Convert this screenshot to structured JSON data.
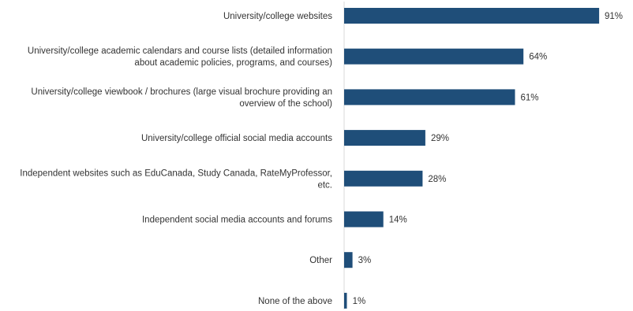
{
  "chart_data": {
    "type": "bar",
    "orientation": "horizontal",
    "categories": [
      "University/college websites",
      "University/college academic calendars and course lists (detailed information about academic policies, programs, and courses)",
      "University/college viewbook / brochures (large visual brochure providing an overview of the school)",
      "University/college official social media accounts",
      "Independent websites such as EduCanada, Study Canada, RateMyProfessor, etc.",
      "Independent social media accounts and forums",
      "Other",
      "None of the above"
    ],
    "category_lines": [
      [
        "University/college websites"
      ],
      [
        "University/college academic calendars and course lists (detailed information",
        "about academic policies, programs, and courses)"
      ],
      [
        "University/college viewbook / brochures (large visual brochure providing an",
        "overview of the school)"
      ],
      [
        "University/college official social media accounts"
      ],
      [
        "Independent websites such as EduCanada, Study Canada, RateMyProfessor,",
        "etc."
      ],
      [
        "Independent social media accounts and forums"
      ],
      [
        "Other"
      ],
      [
        "None of the above"
      ]
    ],
    "values": [
      91,
      64,
      61,
      29,
      28,
      14,
      3,
      1
    ],
    "value_labels": [
      "91%",
      "64%",
      "61%",
      "29%",
      "28%",
      "14%",
      "3%",
      "1%"
    ],
    "title": "",
    "xlabel": "",
    "ylabel": "",
    "xlim": [
      0,
      100
    ],
    "grid": false,
    "legend": "none",
    "bar_color": "#1f4e79"
  }
}
